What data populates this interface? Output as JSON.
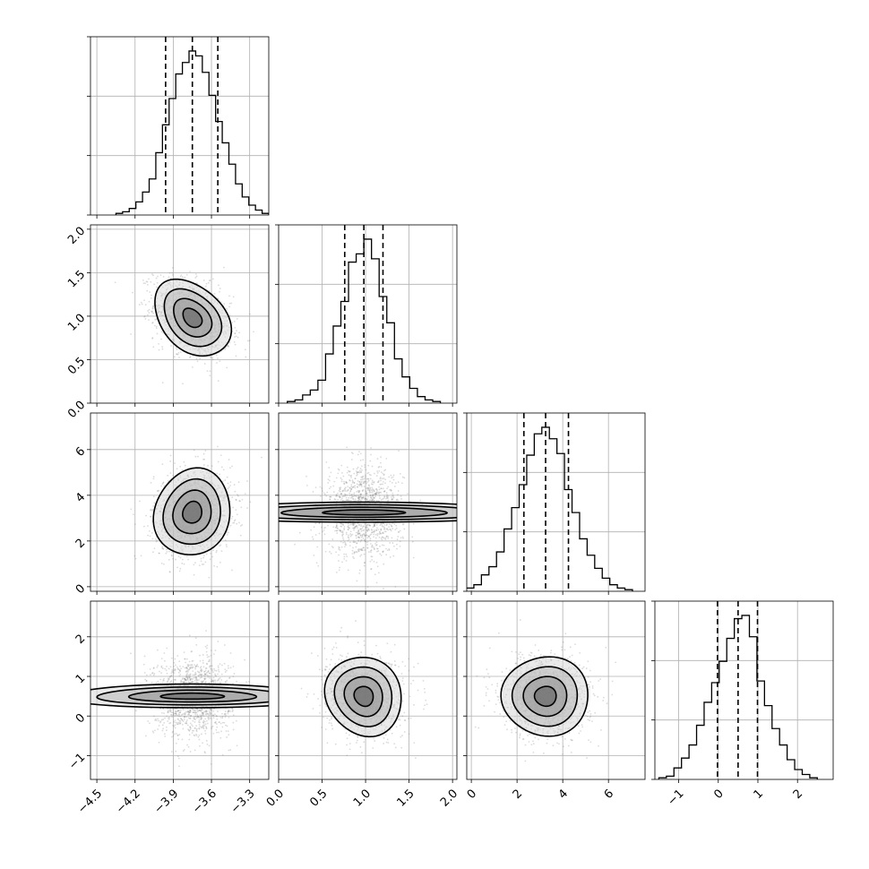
{
  "chart_data": {
    "type": "corner",
    "grid": true,
    "variables": [
      {
        "range": [
          -4.55,
          -3.15
        ],
        "ticks": [
          -4.5,
          -4.2,
          -3.9,
          -3.6,
          -3.3
        ],
        "tick_labels": [
          "−4.5",
          "−4.2",
          "−3.9",
          "−3.6",
          "−3.3"
        ],
        "mean": -3.75,
        "sd": 0.15,
        "quantiles": [
          -3.96,
          -3.75,
          -3.55
        ]
      },
      {
        "range": [
          0.0,
          2.05
        ],
        "ticks": [
          0.0,
          0.5,
          1.0,
          1.5,
          2.0
        ],
        "tick_labels": [
          "0.0",
          "0.5",
          "1.0",
          "1.5",
          "2.0"
        ],
        "mean": 0.98,
        "sd": 0.22,
        "quantiles": [
          0.76,
          0.98,
          1.2
        ]
      },
      {
        "range": [
          -0.2,
          7.6
        ],
        "ticks": [
          0,
          2,
          4,
          6
        ],
        "tick_labels": [
          "0",
          "2",
          "4",
          "6"
        ],
        "mean": 3.25,
        "sd": 0.95,
        "quantiles": [
          2.3,
          3.25,
          4.25
        ]
      },
      {
        "range": [
          -1.6,
          2.9
        ],
        "ticks": [
          -1,
          0,
          1,
          2
        ],
        "tick_labels": [
          "−1",
          "0",
          "1",
          "2"
        ],
        "mean": 0.5,
        "sd": 0.5,
        "quantiles": [
          -0.02,
          0.5,
          0.99
        ]
      }
    ],
    "histograms": [
      [
        0.01,
        0.02,
        0.04,
        0.08,
        0.14,
        0.22,
        0.38,
        0.55,
        0.71,
        0.86,
        0.93,
        1.0,
        0.97,
        0.87,
        0.73,
        0.57,
        0.44,
        0.31,
        0.19,
        0.11,
        0.06,
        0.03,
        0.01
      ],
      [
        0.01,
        0.02,
        0.05,
        0.08,
        0.14,
        0.3,
        0.47,
        0.62,
        0.86,
        0.91,
        1.0,
        0.88,
        0.65,
        0.49,
        0.27,
        0.16,
        0.09,
        0.04,
        0.02,
        0.01
      ],
      [
        0.01,
        0.02,
        0.04,
        0.1,
        0.15,
        0.24,
        0.38,
        0.51,
        0.65,
        0.83,
        0.96,
        1.0,
        0.93,
        0.84,
        0.62,
        0.48,
        0.32,
        0.22,
        0.14,
        0.08,
        0.04,
        0.02,
        0.01
      ],
      [
        0.01,
        0.02,
        0.07,
        0.13,
        0.21,
        0.33,
        0.47,
        0.59,
        0.72,
        0.86,
        0.98,
        1.0,
        0.87,
        0.6,
        0.45,
        0.31,
        0.21,
        0.12,
        0.06,
        0.03,
        0.01
      ]
    ],
    "correlations": [
      [
        1.0,
        -0.35,
        0.1,
        0.0
      ],
      [
        -0.35,
        1.0,
        0.0,
        -0.1
      ],
      [
        0.1,
        0.0,
        1.0,
        0.0
      ],
      [
        0.0,
        -0.1,
        0.0,
        1.0
      ]
    ],
    "contour_levels_sigma": [
      0.5,
      1.0,
      1.5,
      2.0
    ]
  },
  "colors": {
    "line": "#000000",
    "grid": "#b0b0b0",
    "points": "#7f7f7f",
    "density_dark": "#2a2a2a"
  }
}
